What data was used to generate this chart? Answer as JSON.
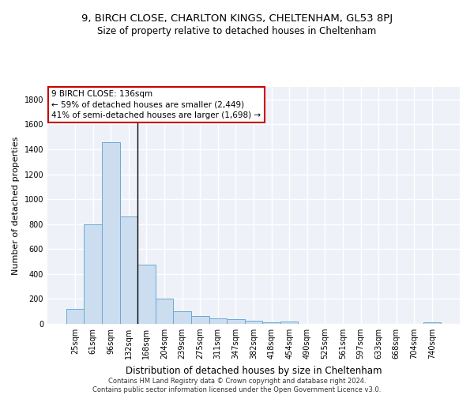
{
  "title1": "9, BIRCH CLOSE, CHARLTON KINGS, CHELTENHAM, GL53 8PJ",
  "title2": "Size of property relative to detached houses in Cheltenham",
  "xlabel": "Distribution of detached houses by size in Cheltenham",
  "ylabel": "Number of detached properties",
  "categories": [
    "25sqm",
    "61sqm",
    "96sqm",
    "132sqm",
    "168sqm",
    "204sqm",
    "239sqm",
    "275sqm",
    "311sqm",
    "347sqm",
    "382sqm",
    "418sqm",
    "454sqm",
    "490sqm",
    "525sqm",
    "561sqm",
    "597sqm",
    "633sqm",
    "668sqm",
    "704sqm",
    "740sqm"
  ],
  "values": [
    120,
    795,
    1455,
    862,
    478,
    200,
    100,
    65,
    42,
    35,
    27,
    15,
    18,
    0,
    0,
    0,
    0,
    0,
    0,
    0,
    12
  ],
  "bar_color": "#ccddf0",
  "bar_edge_color": "#6aaad4",
  "vline_x_index": 3.5,
  "annotation_text": "9 BIRCH CLOSE: 136sqm\n← 59% of detached houses are smaller (2,449)\n41% of semi-detached houses are larger (1,698) →",
  "annotation_box_color": "#ffffff",
  "annotation_box_edge_color": "#cc0000",
  "ylim": [
    0,
    1900
  ],
  "yticks": [
    0,
    200,
    400,
    600,
    800,
    1000,
    1200,
    1400,
    1600,
    1800
  ],
  "background_color": "#eef2f8",
  "grid_color": "#ffffff",
  "footer": "Contains HM Land Registry data © Crown copyright and database right 2024.\nContains public sector information licensed under the Open Government Licence v3.0.",
  "title1_fontsize": 9.5,
  "title2_fontsize": 8.5,
  "xlabel_fontsize": 8.5,
  "ylabel_fontsize": 8,
  "tick_fontsize": 7,
  "annotation_fontsize": 7.5,
  "footer_fontsize": 6
}
